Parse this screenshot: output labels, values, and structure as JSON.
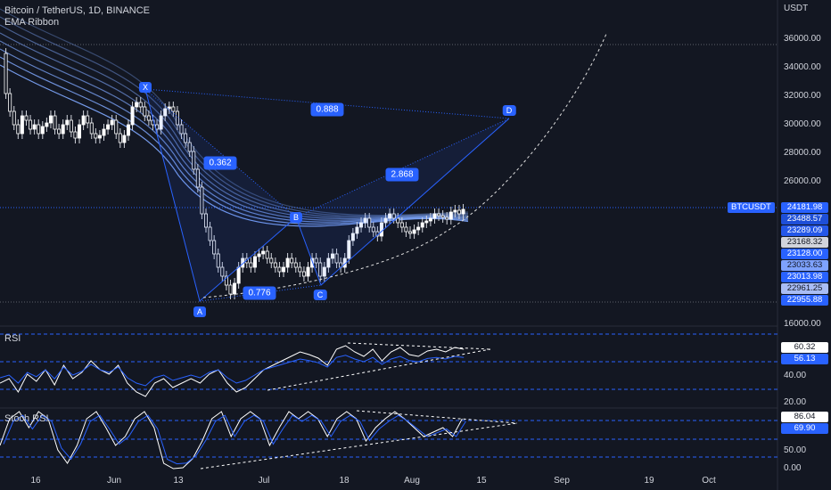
{
  "header": {
    "symbol_line": "Bitcoin / TetherUS, 1D, BINANCE",
    "indicator": "EMA Ribbon"
  },
  "axis": {
    "currency": "USDT",
    "price_ticks": [
      "36000.00",
      "34000.00",
      "32000.00",
      "30000.00",
      "28000.00",
      "26000.00",
      "16000.00"
    ],
    "rsi_ticks": [
      "40.00",
      "20.00"
    ],
    "stoch_ticks": [
      "50.00",
      "0.00"
    ],
    "time_labels": [
      "16",
      "Jun",
      "13",
      "Jul",
      "18",
      "Aug",
      "15",
      "Sep",
      "19",
      "Oct"
    ]
  },
  "symbol_tag": "BTCUSDT",
  "price_tags": [
    {
      "text": "24181.98",
      "bg": "#2962ff",
      "fg": "#ffffff"
    },
    {
      "text": "23488.57",
      "bg": "#1e4fd8",
      "fg": "#ffffff"
    },
    {
      "text": "23289.09",
      "bg": "#2457e8",
      "fg": "#ffffff"
    },
    {
      "text": "23168.32",
      "bg": "#d1d4dc",
      "fg": "#131722"
    },
    {
      "text": "23128.00",
      "bg": "#2962ff",
      "fg": "#ffffff"
    },
    {
      "text": "23033.63",
      "bg": "#7ea2ff",
      "fg": "#131722"
    },
    {
      "text": "23013.98",
      "bg": "#2962ff",
      "fg": "#ffffff"
    },
    {
      "text": "22961.25",
      "bg": "#a9bdf5",
      "fg": "#131722"
    },
    {
      "text": "22955.88",
      "bg": "#2962ff",
      "fg": "#ffffff"
    }
  ],
  "rsi": {
    "label": "RSI",
    "values": [
      "60.32",
      "56.13"
    ]
  },
  "stoch": {
    "label": "Stoch RSI",
    "values": [
      "86.04",
      "69.90"
    ]
  },
  "pattern": {
    "points": [
      "X",
      "A",
      "B",
      "C",
      "D"
    ],
    "ratios": [
      "0.888",
      "0.362",
      "2.868",
      "0.776"
    ]
  },
  "colors": {
    "background": "#131722",
    "accent": "#2962ff",
    "ribbon": "#7fa8ff",
    "candle_up": "#ffffff",
    "candle_down": "#ffffff"
  }
}
